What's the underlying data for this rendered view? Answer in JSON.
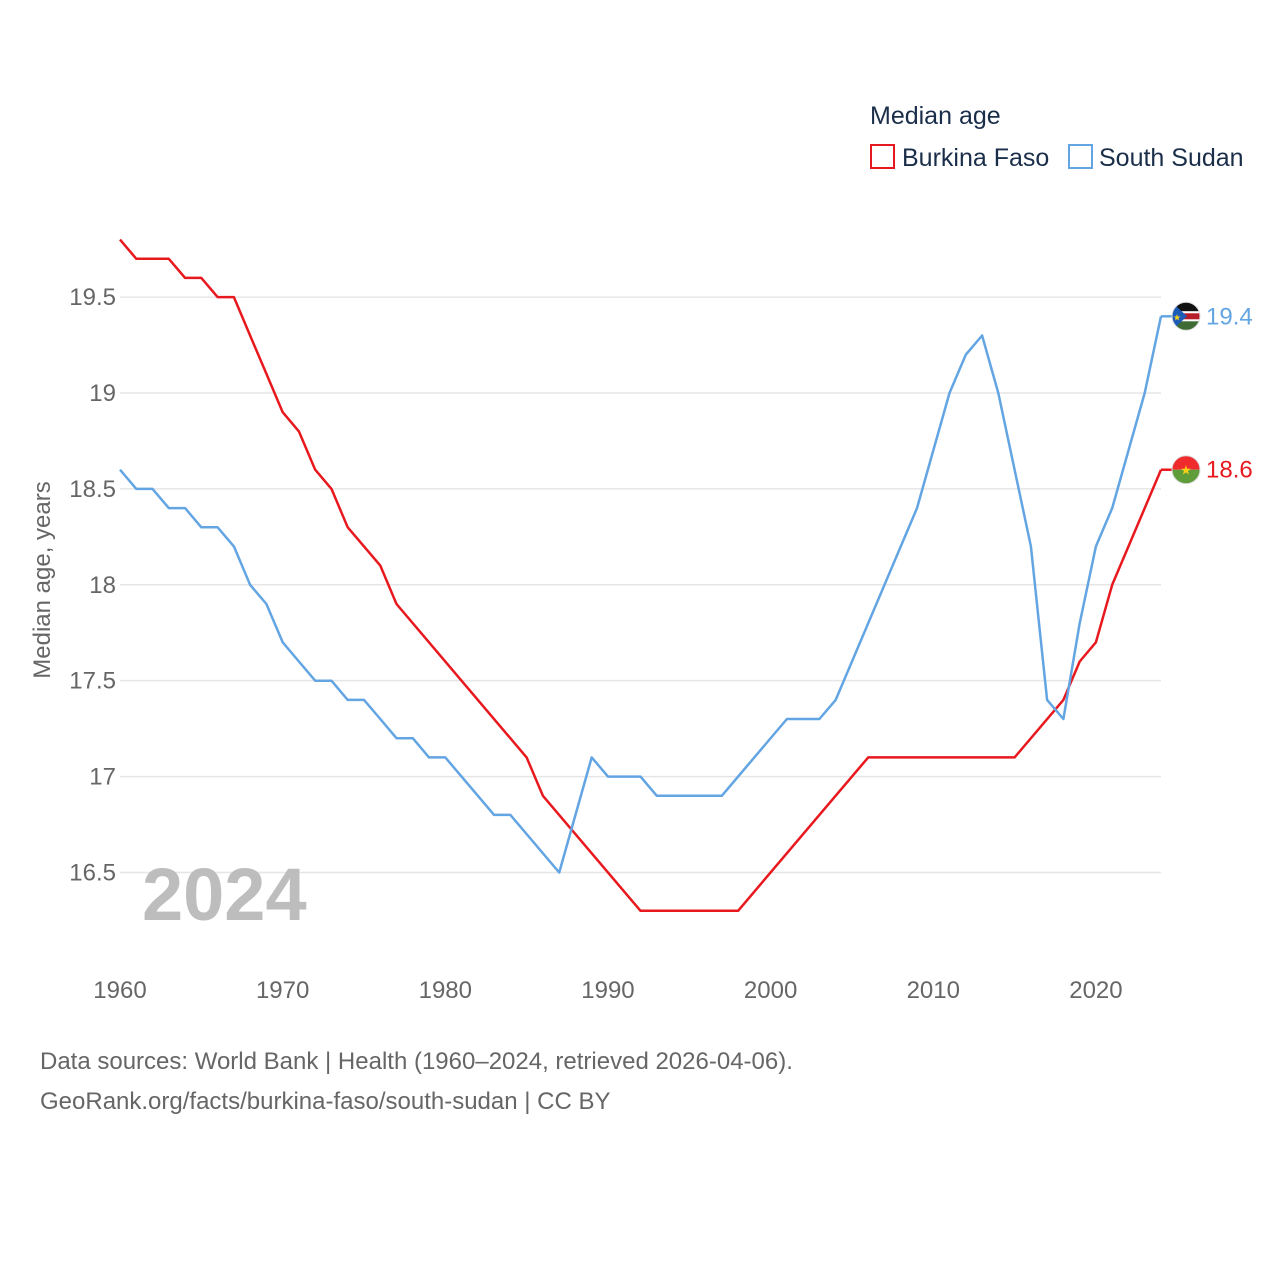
{
  "chart_data": {
    "type": "line",
    "ylabel": "Median age, years",
    "xlabel": "",
    "xlim": [
      1960,
      2024
    ],
    "ylim": [
      16.2,
      19.85
    ],
    "year_watermark": "2024",
    "legend": {
      "title": "Median age",
      "placement": "top-right"
    },
    "y_ticks": [
      {
        "value": 16.5,
        "label": "16.5"
      },
      {
        "value": 17,
        "label": "17"
      },
      {
        "value": 17.5,
        "label": "17.5"
      },
      {
        "value": 18,
        "label": "18"
      },
      {
        "value": 18.5,
        "label": "18.5"
      },
      {
        "value": 19,
        "label": "19"
      },
      {
        "value": 19.5,
        "label": "19.5"
      }
    ],
    "x_ticks": [
      {
        "value": 1960,
        "label": "1960"
      },
      {
        "value": 1970,
        "label": "1970"
      },
      {
        "value": 1980,
        "label": "1980"
      },
      {
        "value": 1990,
        "label": "1990"
      },
      {
        "value": 2000,
        "label": "2000"
      },
      {
        "value": 2010,
        "label": "2010"
      },
      {
        "value": 2020,
        "label": "2020"
      }
    ],
    "series": [
      {
        "name": "Burkina Faso",
        "color": "#e8191e",
        "end_label": "18.6",
        "flag": "burkina-faso-flag-icon",
        "points": [
          [
            1960,
            19.8
          ],
          [
            1961,
            19.7
          ],
          [
            1963,
            19.7
          ],
          [
            1964,
            19.6
          ],
          [
            1965,
            19.6
          ],
          [
            1966,
            19.5
          ],
          [
            1967,
            19.5
          ],
          [
            1968,
            19.3
          ],
          [
            1969,
            19.1
          ],
          [
            1970,
            18.9
          ],
          [
            1971,
            18.8
          ],
          [
            1972,
            18.6
          ],
          [
            1973,
            18.5
          ],
          [
            1974,
            18.3
          ],
          [
            1975,
            18.2
          ],
          [
            1976,
            18.1
          ],
          [
            1977,
            17.9
          ],
          [
            1985,
            17.1
          ],
          [
            1986,
            16.9
          ],
          [
            1992,
            16.3
          ],
          [
            1998,
            16.3
          ],
          [
            2006,
            17.1
          ],
          [
            2015,
            17.1
          ],
          [
            2018,
            17.4
          ],
          [
            2019,
            17.6
          ],
          [
            2020,
            17.7
          ],
          [
            2021,
            18.0
          ],
          [
            2024,
            18.6
          ]
        ]
      },
      {
        "name": "South Sudan",
        "color": "#63a5e3",
        "end_label": "19.4",
        "flag": "south-sudan-flag-icon",
        "points": [
          [
            1960,
            18.6
          ],
          [
            1961,
            18.5
          ],
          [
            1962,
            18.5
          ],
          [
            1963,
            18.4
          ],
          [
            1964,
            18.4
          ],
          [
            1965,
            18.3
          ],
          [
            1966,
            18.3
          ],
          [
            1967,
            18.2
          ],
          [
            1968,
            18.0
          ],
          [
            1969,
            17.9
          ],
          [
            1970,
            17.7
          ],
          [
            1971,
            17.6
          ],
          [
            1972,
            17.5
          ],
          [
            1973,
            17.5
          ],
          [
            1974,
            17.4
          ],
          [
            1975,
            17.4
          ],
          [
            1976,
            17.3
          ],
          [
            1977,
            17.2
          ],
          [
            1978,
            17.2
          ],
          [
            1979,
            17.1
          ],
          [
            1980,
            17.1
          ],
          [
            1983,
            16.8
          ],
          [
            1984,
            16.8
          ],
          [
            1987,
            16.5
          ],
          [
            1989,
            17.1
          ],
          [
            1990,
            17.0
          ],
          [
            1992,
            17.0
          ],
          [
            1993,
            16.9
          ],
          [
            1997,
            16.9
          ],
          [
            2001,
            17.3
          ],
          [
            2003,
            17.3
          ],
          [
            2004,
            17.4
          ],
          [
            2009,
            18.4
          ],
          [
            2011,
            19.0
          ],
          [
            2012,
            19.2
          ],
          [
            2013,
            19.3
          ],
          [
            2014,
            19.0
          ],
          [
            2016,
            18.2
          ],
          [
            2017,
            17.4
          ],
          [
            2018,
            17.3
          ],
          [
            2019,
            17.8
          ],
          [
            2020,
            18.2
          ],
          [
            2021,
            18.4
          ],
          [
            2023,
            19.0
          ],
          [
            2024,
            19.4
          ]
        ]
      }
    ]
  },
  "footer": {
    "line1": "Data sources: World Bank | Health (1960–2024, retrieved 2026-04-06).",
    "line2": "GeoRank.org/facts/burkina-faso/south-sudan | CC BY"
  }
}
